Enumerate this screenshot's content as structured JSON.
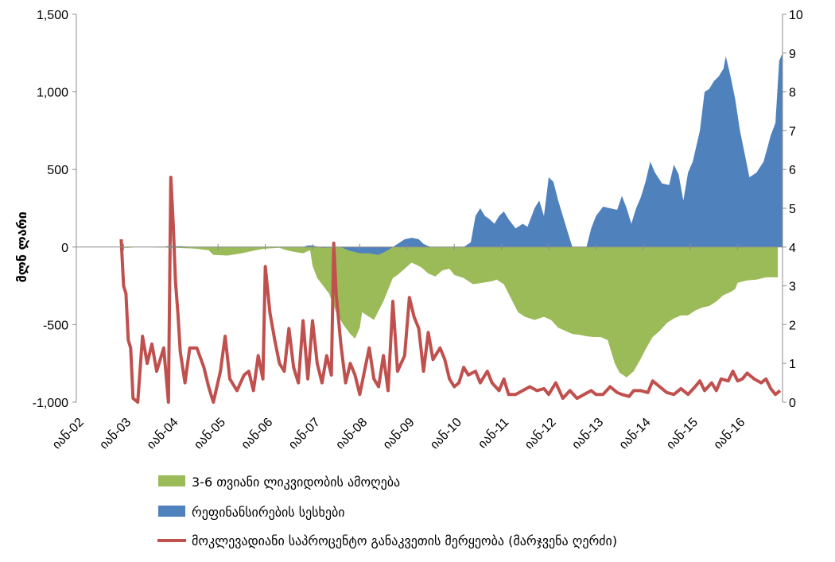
{
  "chart_data": {
    "type": "area",
    "y_left": {
      "label": "მლნ ლარი",
      "ylim": [
        -1000,
        1500
      ],
      "ticks": [
        "1,500",
        "1,000",
        "500",
        "0",
        "-500",
        "-1,000"
      ],
      "tick_values": [
        1500,
        1000,
        500,
        0,
        -500,
        -1000
      ]
    },
    "y_right": {
      "ylim": [
        0,
        10
      ],
      "ticks": [
        "10",
        "9",
        "8",
        "7",
        "6",
        "5",
        "4",
        "3",
        "2",
        "1",
        "0"
      ],
      "tick_values": [
        10,
        9,
        8,
        7,
        6,
        5,
        4,
        3,
        2,
        1,
        0
      ]
    },
    "x_ticks": [
      "იან-02",
      "იან-03",
      "იან-04",
      "იან-05",
      "იან-06",
      "იან-07",
      "იან-08",
      "იან-09",
      "იან-10",
      "იან-11",
      "იან-12",
      "იან-13",
      "იან-14",
      "იან-15",
      "იან-16"
    ],
    "x_range": [
      2002.0,
      2016.95
    ],
    "grid": false,
    "legend_position": "bottom",
    "series": [
      {
        "name": "3-6 თვიანი ლიკვიდობის ამოღება",
        "kind": "area",
        "axis": "left",
        "color": "#9bbb59",
        "points": [
          [
            2002.95,
            -5
          ],
          [
            2003.1,
            -5
          ],
          [
            2003.3,
            0
          ],
          [
            2004.1,
            -5
          ],
          [
            2004.5,
            -10
          ],
          [
            2004.8,
            -20
          ],
          [
            2004.9,
            -50
          ],
          [
            2005.2,
            -55
          ],
          [
            2005.5,
            -40
          ],
          [
            2005.8,
            -20
          ],
          [
            2006.0,
            -10
          ],
          [
            2006.3,
            -5
          ],
          [
            2006.45,
            -20
          ],
          [
            2006.6,
            -30
          ],
          [
            2006.8,
            -40
          ],
          [
            2006.95,
            -20
          ],
          [
            2007.0,
            -120
          ],
          [
            2007.1,
            -200
          ],
          [
            2007.2,
            -240
          ],
          [
            2007.35,
            -300
          ],
          [
            2007.5,
            -420
          ],
          [
            2007.65,
            -500
          ],
          [
            2007.8,
            -560
          ],
          [
            2007.9,
            -590
          ],
          [
            2008.0,
            -520
          ],
          [
            2008.05,
            -420
          ],
          [
            2008.15,
            -440
          ],
          [
            2008.3,
            -470
          ],
          [
            2008.5,
            -350
          ],
          [
            2008.7,
            -200
          ],
          [
            2008.8,
            -180
          ],
          [
            2008.95,
            -140
          ],
          [
            2009.1,
            -100
          ],
          [
            2009.3,
            -130
          ],
          [
            2009.45,
            -170
          ],
          [
            2009.6,
            -190
          ],
          [
            2009.75,
            -150
          ],
          [
            2009.9,
            -140
          ],
          [
            2010.0,
            -180
          ],
          [
            2010.2,
            -200
          ],
          [
            2010.4,
            -240
          ],
          [
            2010.6,
            -230
          ],
          [
            2010.8,
            -220
          ],
          [
            2010.9,
            -210
          ],
          [
            2011.05,
            -240
          ],
          [
            2011.2,
            -330
          ],
          [
            2011.35,
            -420
          ],
          [
            2011.5,
            -450
          ],
          [
            2011.7,
            -470
          ],
          [
            2011.9,
            -450
          ],
          [
            2012.05,
            -470
          ],
          [
            2012.2,
            -520
          ],
          [
            2012.35,
            -540
          ],
          [
            2012.5,
            -560
          ],
          [
            2012.65,
            -565
          ],
          [
            2012.8,
            -575
          ],
          [
            2012.95,
            -580
          ],
          [
            2013.1,
            -580
          ],
          [
            2013.25,
            -600
          ],
          [
            2013.4,
            -750
          ],
          [
            2013.5,
            -810
          ],
          [
            2013.65,
            -840
          ],
          [
            2013.8,
            -800
          ],
          [
            2013.95,
            -720
          ],
          [
            2014.05,
            -660
          ],
          [
            2014.2,
            -580
          ],
          [
            2014.35,
            -540
          ],
          [
            2014.5,
            -490
          ],
          [
            2014.65,
            -460
          ],
          [
            2014.8,
            -440
          ],
          [
            2014.95,
            -440
          ],
          [
            2015.1,
            -410
          ],
          [
            2015.25,
            -390
          ],
          [
            2015.4,
            -380
          ],
          [
            2015.55,
            -350
          ],
          [
            2015.7,
            -310
          ],
          [
            2015.85,
            -290
          ],
          [
            2015.95,
            -270
          ],
          [
            2016.0,
            -230
          ],
          [
            2016.2,
            -215
          ],
          [
            2016.4,
            -210
          ],
          [
            2016.6,
            -195
          ],
          [
            2016.85,
            -195
          ]
        ]
      },
      {
        "name": "რეფინანსირების სესხები",
        "kind": "area",
        "axis": "left",
        "color": "#4f81bd",
        "points": [
          [
            2003.9,
            5
          ],
          [
            2004.2,
            5
          ],
          [
            2004.5,
            0
          ],
          [
            2006.8,
            0
          ],
          [
            2006.9,
            10
          ],
          [
            2007.0,
            10
          ],
          [
            2007.2,
            -5
          ],
          [
            2007.6,
            0
          ],
          [
            2007.75,
            -20
          ],
          [
            2008.0,
            -40
          ],
          [
            2008.2,
            -40
          ],
          [
            2008.4,
            -50
          ],
          [
            2008.6,
            -20
          ],
          [
            2008.8,
            20
          ],
          [
            2008.95,
            50
          ],
          [
            2009.1,
            60
          ],
          [
            2009.25,
            50
          ],
          [
            2009.35,
            20
          ],
          [
            2009.5,
            0
          ],
          [
            2010.2,
            0
          ],
          [
            2010.35,
            30
          ],
          [
            2010.45,
            200
          ],
          [
            2010.55,
            250
          ],
          [
            2010.65,
            200
          ],
          [
            2010.75,
            180
          ],
          [
            2010.85,
            150
          ],
          [
            2010.95,
            200
          ],
          [
            2011.05,
            230
          ],
          [
            2011.15,
            180
          ],
          [
            2011.3,
            120
          ],
          [
            2011.45,
            150
          ],
          [
            2011.55,
            130
          ],
          [
            2011.7,
            250
          ],
          [
            2011.8,
            300
          ],
          [
            2011.9,
            200
          ],
          [
            2012.0,
            450
          ],
          [
            2012.1,
            420
          ],
          [
            2012.2,
            300
          ],
          [
            2012.3,
            200
          ],
          [
            2012.4,
            100
          ],
          [
            2012.5,
            0
          ],
          [
            2012.8,
            0
          ],
          [
            2012.9,
            120
          ],
          [
            2013.0,
            200
          ],
          [
            2013.15,
            260
          ],
          [
            2013.3,
            250
          ],
          [
            2013.45,
            240
          ],
          [
            2013.55,
            330
          ],
          [
            2013.65,
            250
          ],
          [
            2013.75,
            150
          ],
          [
            2013.85,
            250
          ],
          [
            2013.95,
            320
          ],
          [
            2014.05,
            420
          ],
          [
            2014.15,
            550
          ],
          [
            2014.25,
            480
          ],
          [
            2014.4,
            410
          ],
          [
            2014.55,
            400
          ],
          [
            2014.65,
            530
          ],
          [
            2014.75,
            470
          ],
          [
            2014.85,
            300
          ],
          [
            2014.95,
            480
          ],
          [
            2015.05,
            550
          ],
          [
            2015.2,
            750
          ],
          [
            2015.3,
            1000
          ],
          [
            2015.4,
            1020
          ],
          [
            2015.5,
            1070
          ],
          [
            2015.6,
            1100
          ],
          [
            2015.7,
            1150
          ],
          [
            2015.75,
            1230
          ],
          [
            2015.85,
            1100
          ],
          [
            2015.95,
            950
          ],
          [
            2016.05,
            750
          ],
          [
            2016.15,
            600
          ],
          [
            2016.25,
            450
          ],
          [
            2016.4,
            480
          ],
          [
            2016.55,
            550
          ],
          [
            2016.7,
            720
          ],
          [
            2016.8,
            800
          ],
          [
            2016.88,
            1200
          ],
          [
            2016.95,
            1250
          ]
        ]
      },
      {
        "name": "მოკლევადიანი საპროცენტო განაკვეთის მერყეობა (მარჯვენა ღერძი)",
        "kind": "line",
        "axis": "right",
        "color": "#c0504d",
        "points": [
          [
            2002.95,
            4.2
          ],
          [
            2003.0,
            3.0
          ],
          [
            2003.05,
            2.8
          ],
          [
            2003.1,
            1.6
          ],
          [
            2003.15,
            1.4
          ],
          [
            2003.2,
            0.1
          ],
          [
            2003.3,
            0.0
          ],
          [
            2003.4,
            1.7
          ],
          [
            2003.5,
            1.0
          ],
          [
            2003.6,
            1.5
          ],
          [
            2003.7,
            0.8
          ],
          [
            2003.85,
            1.4
          ],
          [
            2003.95,
            0.0
          ],
          [
            2004.0,
            5.8
          ],
          [
            2004.05,
            4.6
          ],
          [
            2004.1,
            3.1
          ],
          [
            2004.15,
            2.3
          ],
          [
            2004.2,
            1.3
          ],
          [
            2004.3,
            0.5
          ],
          [
            2004.4,
            1.4
          ],
          [
            2004.55,
            1.4
          ],
          [
            2004.7,
            0.9
          ],
          [
            2004.8,
            0.4
          ],
          [
            2004.9,
            0.0
          ],
          [
            2005.05,
            0.8
          ],
          [
            2005.15,
            1.7
          ],
          [
            2005.25,
            0.6
          ],
          [
            2005.4,
            0.3
          ],
          [
            2005.55,
            0.7
          ],
          [
            2005.65,
            0.8
          ],
          [
            2005.75,
            0.3
          ],
          [
            2005.85,
            1.2
          ],
          [
            2005.95,
            0.6
          ],
          [
            2006.0,
            3.5
          ],
          [
            2006.1,
            2.3
          ],
          [
            2006.2,
            1.6
          ],
          [
            2006.3,
            1.0
          ],
          [
            2006.4,
            0.8
          ],
          [
            2006.5,
            1.9
          ],
          [
            2006.6,
            0.9
          ],
          [
            2006.7,
            0.5
          ],
          [
            2006.8,
            2.1
          ],
          [
            2006.9,
            0.6
          ],
          [
            2007.0,
            2.1
          ],
          [
            2007.1,
            1.0
          ],
          [
            2007.2,
            0.5
          ],
          [
            2007.3,
            1.2
          ],
          [
            2007.4,
            0.7
          ],
          [
            2007.45,
            4.1
          ],
          [
            2007.5,
            2.8
          ],
          [
            2007.6,
            1.5
          ],
          [
            2007.7,
            0.5
          ],
          [
            2007.8,
            1.0
          ],
          [
            2007.9,
            0.7
          ],
          [
            2008.0,
            0.2
          ],
          [
            2008.1,
            0.8
          ],
          [
            2008.2,
            1.4
          ],
          [
            2008.3,
            0.6
          ],
          [
            2008.4,
            0.4
          ],
          [
            2008.5,
            1.2
          ],
          [
            2008.6,
            0.3
          ],
          [
            2008.7,
            2.6
          ],
          [
            2008.8,
            0.8
          ],
          [
            2008.95,
            1.2
          ],
          [
            2009.05,
            2.7
          ],
          [
            2009.15,
            2.2
          ],
          [
            2009.25,
            1.9
          ],
          [
            2009.35,
            0.8
          ],
          [
            2009.45,
            1.8
          ],
          [
            2009.55,
            1.1
          ],
          [
            2009.7,
            1.4
          ],
          [
            2009.8,
            1.1
          ],
          [
            2009.9,
            0.6
          ],
          [
            2010.0,
            0.4
          ],
          [
            2010.1,
            0.5
          ],
          [
            2010.2,
            0.9
          ],
          [
            2010.3,
            0.7
          ],
          [
            2010.45,
            0.8
          ],
          [
            2010.55,
            0.5
          ],
          [
            2010.7,
            0.8
          ],
          [
            2010.8,
            0.5
          ],
          [
            2010.95,
            0.3
          ],
          [
            2011.05,
            0.6
          ],
          [
            2011.15,
            0.2
          ],
          [
            2011.3,
            0.2
          ],
          [
            2011.45,
            0.3
          ],
          [
            2011.6,
            0.4
          ],
          [
            2011.75,
            0.3
          ],
          [
            2011.9,
            0.35
          ],
          [
            2012.0,
            0.2
          ],
          [
            2012.15,
            0.5
          ],
          [
            2012.3,
            0.1
          ],
          [
            2012.45,
            0.3
          ],
          [
            2012.6,
            0.1
          ],
          [
            2012.75,
            0.2
          ],
          [
            2012.9,
            0.3
          ],
          [
            2013.0,
            0.2
          ],
          [
            2013.15,
            0.2
          ],
          [
            2013.3,
            0.4
          ],
          [
            2013.45,
            0.25
          ],
          [
            2013.55,
            0.2
          ],
          [
            2013.7,
            0.15
          ],
          [
            2013.8,
            0.3
          ],
          [
            2013.95,
            0.3
          ],
          [
            2014.1,
            0.25
          ],
          [
            2014.2,
            0.55
          ],
          [
            2014.35,
            0.4
          ],
          [
            2014.5,
            0.25
          ],
          [
            2014.65,
            0.2
          ],
          [
            2014.8,
            0.35
          ],
          [
            2014.95,
            0.2
          ],
          [
            2015.1,
            0.4
          ],
          [
            2015.2,
            0.55
          ],
          [
            2015.3,
            0.3
          ],
          [
            2015.45,
            0.5
          ],
          [
            2015.55,
            0.3
          ],
          [
            2015.65,
            0.6
          ],
          [
            2015.8,
            0.55
          ],
          [
            2015.9,
            0.8
          ],
          [
            2016.0,
            0.55
          ],
          [
            2016.1,
            0.6
          ],
          [
            2016.2,
            0.75
          ],
          [
            2016.35,
            0.6
          ],
          [
            2016.5,
            0.5
          ],
          [
            2016.6,
            0.6
          ],
          [
            2016.7,
            0.35
          ],
          [
            2016.8,
            0.2
          ],
          [
            2016.9,
            0.3
          ]
        ]
      }
    ]
  }
}
